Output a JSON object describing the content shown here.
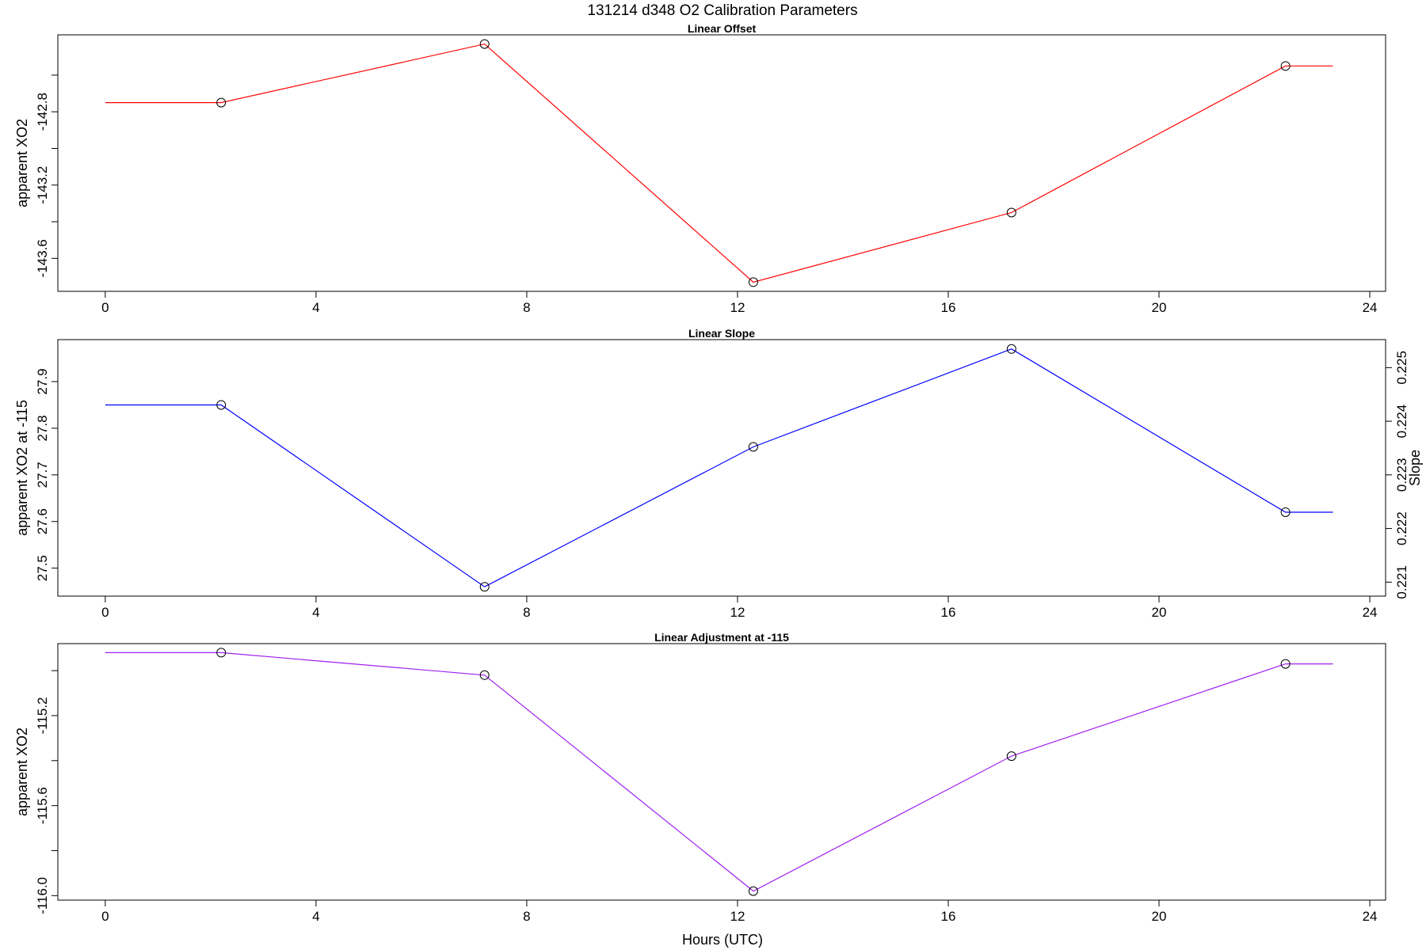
{
  "title": "131214   d348   O2 Calibration Parameters",
  "xlabel": "Hours (UTC)",
  "colors": {
    "offset": "#ff0000",
    "slope": "#0000ff",
    "adjust": "#a020f0",
    "axis": "#000000"
  },
  "chart_data": [
    {
      "type": "line",
      "title": "Linear Offset",
      "ylabel": "apparent XO2",
      "xlim": [
        -0.9,
        24.3
      ],
      "ylim": [
        -143.78,
        -142.38
      ],
      "xticks": [
        0,
        4,
        8,
        12,
        16,
        20,
        24
      ],
      "yticks": [
        -143.6,
        -143.4,
        -143.2,
        -143.0,
        -142.8,
        -142.6
      ],
      "ytick_labels": [
        "-143.6",
        "",
        "-143.2",
        "",
        "-142.8",
        ""
      ],
      "series": [
        {
          "x": [
            0,
            2.2,
            7.2,
            12.3,
            17.2,
            22.4,
            23.3
          ],
          "y": [
            -142.75,
            -142.75,
            -142.43,
            -143.73,
            -143.35,
            -142.55,
            -142.55
          ],
          "markers": [
            false,
            true,
            true,
            true,
            true,
            true,
            false
          ]
        }
      ]
    },
    {
      "type": "line",
      "title": "Linear Slope",
      "ylabel": "apparent XO2 at -115",
      "ylabel_right": "Slope",
      "xlim": [
        -0.9,
        24.3
      ],
      "ylim": [
        27.44,
        27.99
      ],
      "xticks": [
        0,
        4,
        8,
        12,
        16,
        20,
        24
      ],
      "yticks": [
        27.5,
        27.6,
        27.7,
        27.8,
        27.9
      ],
      "ytick_labels": [
        "27.5",
        "27.6",
        "27.7",
        "27.8",
        "27.9"
      ],
      "y2ticks": [
        {
          "label": "0.221",
          "at": 27.47
        },
        {
          "label": "0.222",
          "at": 27.585
        },
        {
          "label": "0.223",
          "at": 27.7
        },
        {
          "label": "0.224",
          "at": 27.815
        },
        {
          "label": "0.225",
          "at": 27.93
        }
      ],
      "series": [
        {
          "x": [
            0,
            2.2,
            7.2,
            12.3,
            17.2,
            22.4,
            23.3
          ],
          "y": [
            27.85,
            27.85,
            27.46,
            27.76,
            27.97,
            27.62,
            27.62
          ],
          "markers": [
            false,
            true,
            true,
            true,
            true,
            true,
            false
          ]
        }
      ]
    },
    {
      "type": "line",
      "title": "Linear Adjustment at -115",
      "ylabel": "apparent XO2",
      "xlim": [
        -0.9,
        24.3
      ],
      "ylim": [
        -116.02,
        -114.88
      ],
      "xticks": [
        0,
        4,
        8,
        12,
        16,
        20,
        24
      ],
      "yticks": [
        -116.0,
        -115.8,
        -115.6,
        -115.4,
        -115.2,
        -115.0
      ],
      "ytick_labels": [
        "-116.0",
        "",
        "-115.6",
        "",
        "-115.2",
        ""
      ],
      "series": [
        {
          "x": [
            0,
            2.2,
            7.2,
            12.3,
            17.2,
            22.4,
            23.3
          ],
          "y": [
            -114.92,
            -114.92,
            -115.02,
            -115.98,
            -115.38,
            -114.97,
            -114.97
          ],
          "markers": [
            false,
            true,
            true,
            true,
            true,
            true,
            false
          ]
        }
      ]
    }
  ]
}
